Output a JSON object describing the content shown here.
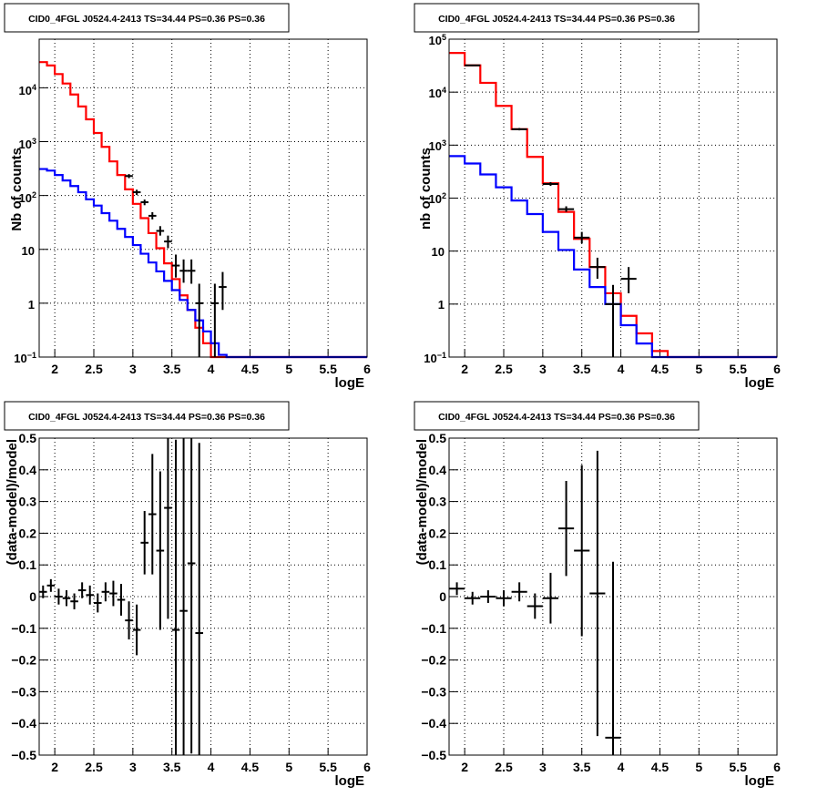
{
  "chart_data": [
    {
      "type": "line",
      "title": "CID0_4FGL J0524.4-2413 TS=34.44 PS=0.36 PS=0.36",
      "xlabel": "logE",
      "ylabel": "Nb of counts",
      "xlim": [
        1.8,
        6.0
      ],
      "ylim": [
        0.1,
        80000
      ],
      "yscale": "log",
      "grid": true,
      "x_ticks": [
        "2",
        "2.5",
        "3",
        "3.5",
        "4",
        "4.5",
        "5",
        "5.5",
        "6"
      ],
      "y_ticks": [
        "10^-1",
        "1",
        "10",
        "10^2",
        "10^3",
        "10^4"
      ],
      "series": [
        {
          "color": "#ff0000",
          "style": "step",
          "x": [
            1.8,
            1.9,
            2.0,
            2.1,
            2.2,
            2.3,
            2.4,
            2.5,
            2.6,
            2.7,
            2.8,
            2.9,
            3.0,
            3.1,
            3.2,
            3.3,
            3.4,
            3.5,
            3.6,
            3.7,
            3.8,
            3.9,
            4.0,
            4.1,
            4.2,
            4.3,
            4.4,
            4.5,
            4.6,
            4.7,
            4.8,
            4.9,
            5.0,
            5.1,
            5.2,
            5.3,
            5.4,
            5.5,
            5.6,
            5.7,
            5.8,
            5.9
          ],
          "y": [
            30000,
            26000,
            18000,
            12000,
            7500,
            4500,
            2600,
            1450,
            800,
            430,
            240,
            130,
            70,
            38,
            20,
            10.5,
            5.5,
            2.8,
            1.4,
            0.75,
            0.35,
            0.18,
            0.1,
            0.1,
            0.1,
            0.1,
            0.1,
            0.1,
            0.1,
            0.1,
            0.1,
            0.1,
            0.1,
            0.1,
            0.1,
            0.1,
            0.1,
            0.1,
            0.1,
            0.1,
            0.1,
            0.1
          ]
        },
        {
          "color": "#0000ff",
          "style": "step",
          "x": [
            1.8,
            1.9,
            2.0,
            2.1,
            2.2,
            2.3,
            2.4,
            2.5,
            2.6,
            2.7,
            2.8,
            2.9,
            3.0,
            3.1,
            3.2,
            3.3,
            3.4,
            3.5,
            3.6,
            3.7,
            3.8,
            3.9,
            4.0,
            4.1,
            4.2,
            4.3,
            4.4,
            4.5,
            4.6,
            4.7,
            4.8,
            4.9,
            5.0,
            5.1,
            5.2,
            5.3,
            5.4,
            5.5,
            5.6,
            5.7,
            5.8,
            5.9
          ],
          "y": [
            310,
            290,
            240,
            190,
            150,
            115,
            85,
            65,
            47,
            34,
            24,
            17,
            12,
            8.3,
            5.7,
            3.9,
            2.6,
            1.75,
            1.15,
            0.75,
            0.48,
            0.3,
            0.18,
            0.11,
            0.1,
            0.1,
            0.1,
            0.1,
            0.1,
            0.1,
            0.1,
            0.1,
            0.1,
            0.1,
            0.1,
            0.1,
            0.1,
            0.1,
            0.1,
            0.1,
            0.1,
            0.1
          ]
        }
      ],
      "points": [
        {
          "x": 2.95,
          "y": 230,
          "xerr": 0.05,
          "ylo": 210,
          "yhi": 250
        },
        {
          "x": 3.05,
          "y": 115,
          "xerr": 0.05,
          "ylo": 102,
          "yhi": 128
        },
        {
          "x": 3.15,
          "y": 75,
          "xerr": 0.05,
          "ylo": 66,
          "yhi": 84
        },
        {
          "x": 3.25,
          "y": 42,
          "xerr": 0.05,
          "ylo": 36,
          "yhi": 49
        },
        {
          "x": 3.35,
          "y": 22,
          "xerr": 0.05,
          "ylo": 18,
          "yhi": 27
        },
        {
          "x": 3.45,
          "y": 14,
          "xerr": 0.05,
          "ylo": 10.5,
          "yhi": 18
        },
        {
          "x": 3.55,
          "y": 5,
          "xerr": 0.05,
          "ylo": 3,
          "yhi": 8
        },
        {
          "x": 3.65,
          "y": 4,
          "xerr": 0.05,
          "ylo": 2.4,
          "yhi": 6.5
        },
        {
          "x": 3.75,
          "y": 4,
          "xerr": 0.05,
          "ylo": 2.3,
          "yhi": 6.5
        },
        {
          "x": 3.85,
          "y": 1,
          "xerr": 0.05,
          "ylo": 0.1,
          "yhi": 2.3
        },
        {
          "x": 4.05,
          "y": 1,
          "xerr": 0.05,
          "ylo": 0.1,
          "yhi": 2.3
        },
        {
          "x": 4.15,
          "y": 2,
          "xerr": 0.05,
          "ylo": 0.75,
          "yhi": 3.8
        }
      ]
    },
    {
      "type": "line",
      "title": "CID0_4FGL J0524.4-2413 TS=34.44 PS=0.36 PS=0.36",
      "xlabel": "logE",
      "ylabel": "nb of counts",
      "xlim": [
        1.8,
        6.0
      ],
      "ylim": [
        0.1,
        100000
      ],
      "yscale": "log",
      "grid": true,
      "x_ticks": [
        "2",
        "2.5",
        "3",
        "3.5",
        "4",
        "4.5",
        "5",
        "5.5",
        "6"
      ],
      "y_ticks": [
        "10^-1",
        "1",
        "10",
        "10^2",
        "10^3",
        "10^4",
        "10^5"
      ],
      "series": [
        {
          "color": "#ff0000",
          "style": "step",
          "x": [
            1.8,
            2.0,
            2.2,
            2.4,
            2.6,
            2.8,
            3.0,
            3.2,
            3.4,
            3.6,
            3.8,
            4.0,
            4.2,
            4.4,
            4.6,
            4.8,
            5.0,
            5.2,
            5.4,
            5.6,
            5.8
          ],
          "y": [
            55000,
            32000,
            15000,
            5500,
            2000,
            600,
            190,
            55,
            17,
            5,
            1.6,
            0.6,
            0.28,
            0.13,
            0.1,
            0.1,
            0.1,
            0.1,
            0.1,
            0.1,
            0.1
          ]
        },
        {
          "color": "#0000ff",
          "style": "step",
          "x": [
            1.8,
            2.0,
            2.2,
            2.4,
            2.6,
            2.8,
            3.0,
            3.2,
            3.4,
            3.6,
            3.8,
            4.0,
            4.2,
            4.4,
            4.6,
            4.8,
            5.0,
            5.2,
            5.4,
            5.6,
            5.8
          ],
          "y": [
            620,
            450,
            280,
            160,
            90,
            50,
            23,
            10.5,
            4.5,
            2.1,
            1.0,
            0.4,
            0.18,
            0.1,
            0.1,
            0.1,
            0.1,
            0.1,
            0.1,
            0.1,
            0.1
          ]
        }
      ],
      "points": [
        {
          "x": 2.1,
          "y": 32000,
          "xerr": 0.1,
          "ylo": 31000,
          "yhi": 33000
        },
        {
          "x": 2.7,
          "y": 2000,
          "xerr": 0.1,
          "ylo": 1900,
          "yhi": 2100
        },
        {
          "x": 3.1,
          "y": 185,
          "xerr": 0.1,
          "ylo": 170,
          "yhi": 200
        },
        {
          "x": 3.3,
          "y": 62,
          "xerr": 0.1,
          "ylo": 55,
          "yhi": 70
        },
        {
          "x": 3.5,
          "y": 18,
          "xerr": 0.1,
          "ylo": 14,
          "yhi": 23
        },
        {
          "x": 3.7,
          "y": 5,
          "xerr": 0.1,
          "ylo": 3,
          "yhi": 7.5
        },
        {
          "x": 3.9,
          "y": 1,
          "xerr": 0.1,
          "ylo": 0.1,
          "yhi": 2.3
        },
        {
          "x": 4.1,
          "y": 3,
          "xerr": 0.1,
          "ylo": 1.6,
          "yhi": 5
        }
      ]
    },
    {
      "type": "scatter",
      "title": "CID0_4FGL J0524.4-2413 TS=34.44 PS=0.36 PS=0.36",
      "xlabel": "logE",
      "ylabel": "(data-model)/model",
      "xlim": [
        1.8,
        6.0
      ],
      "ylim": [
        -0.5,
        0.5
      ],
      "grid": true,
      "x_ticks": [
        "2",
        "2.5",
        "3",
        "3.5",
        "4",
        "4.5",
        "5",
        "5.5",
        "6"
      ],
      "y_ticks": [
        "-0.5",
        "-0.4",
        "-0.3",
        "-0.2",
        "-0.1",
        "0",
        "0.1",
        "0.2",
        "0.3",
        "0.4",
        "0.5"
      ],
      "points": [
        {
          "x": 1.85,
          "y": 0.015,
          "xerr": 0.05,
          "err": 0.02
        },
        {
          "x": 1.95,
          "y": 0.035,
          "xerr": 0.05,
          "err": 0.02
        },
        {
          "x": 2.05,
          "y": 0.0,
          "xerr": 0.05,
          "err": 0.025
        },
        {
          "x": 2.15,
          "y": -0.005,
          "xerr": 0.05,
          "err": 0.025
        },
        {
          "x": 2.25,
          "y": -0.015,
          "xerr": 0.05,
          "err": 0.025
        },
        {
          "x": 2.35,
          "y": 0.02,
          "xerr": 0.05,
          "err": 0.025
        },
        {
          "x": 2.45,
          "y": 0.005,
          "xerr": 0.05,
          "err": 0.03
        },
        {
          "x": 2.55,
          "y": -0.02,
          "xerr": 0.05,
          "err": 0.03
        },
        {
          "x": 2.65,
          "y": 0.015,
          "xerr": 0.05,
          "err": 0.03
        },
        {
          "x": 2.75,
          "y": 0.01,
          "xerr": 0.05,
          "err": 0.04
        },
        {
          "x": 2.85,
          "y": -0.01,
          "xerr": 0.05,
          "err": 0.05
        },
        {
          "x": 2.95,
          "y": -0.075,
          "xerr": 0.05,
          "err": 0.06
        },
        {
          "x": 3.05,
          "y": -0.105,
          "xerr": 0.05,
          "err": 0.08
        },
        {
          "x": 3.15,
          "y": 0.17,
          "xerr": 0.05,
          "err": 0.1
        },
        {
          "x": 3.25,
          "y": 0.26,
          "xerr": 0.05,
          "err": 0.19
        },
        {
          "x": 3.35,
          "y": 0.145,
          "xerr": 0.05,
          "err": 0.25
        },
        {
          "x": 3.45,
          "y": 0.28,
          "xerr": 0.05,
          "err": 0.35
        },
        {
          "x": 3.55,
          "y": -0.105,
          "xerr": 0.05,
          "err": 0.6
        },
        {
          "x": 3.65,
          "y": -0.045,
          "xerr": 0.05,
          "err": 0.6
        },
        {
          "x": 3.75,
          "y": 0.105,
          "xerr": 0.05,
          "err": 0.6
        },
        {
          "x": 3.85,
          "y": -0.115,
          "xerr": 0.05,
          "err": 0.6
        }
      ]
    },
    {
      "type": "scatter",
      "title": "CID0_4FGL J0524.4-2413 TS=34.44 PS=0.36 PS=0.36",
      "xlabel": "logE",
      "ylabel": "(data-model)/model",
      "xlim": [
        1.8,
        6.0
      ],
      "ylim": [
        -0.5,
        0.5
      ],
      "grid": true,
      "x_ticks": [
        "2",
        "2.5",
        "3",
        "3.5",
        "4",
        "4.5",
        "5",
        "5.5",
        "6"
      ],
      "y_ticks": [
        "-0.5",
        "-0.4",
        "-0.3",
        "-0.2",
        "-0.1",
        "0",
        "0.1",
        "0.2",
        "0.3",
        "0.4",
        "0.5"
      ],
      "points": [
        {
          "x": 1.9,
          "y": 0.025,
          "xerr": 0.1,
          "err": 0.02
        },
        {
          "x": 2.1,
          "y": -0.005,
          "xerr": 0.1,
          "err": 0.02
        },
        {
          "x": 2.3,
          "y": 0.0,
          "xerr": 0.1,
          "err": 0.02
        },
        {
          "x": 2.5,
          "y": -0.005,
          "xerr": 0.1,
          "err": 0.025
        },
        {
          "x": 2.7,
          "y": 0.015,
          "xerr": 0.1,
          "err": 0.03
        },
        {
          "x": 2.9,
          "y": -0.03,
          "xerr": 0.1,
          "err": 0.04
        },
        {
          "x": 3.1,
          "y": -0.005,
          "xerr": 0.1,
          "err": 0.08
        },
        {
          "x": 3.3,
          "y": 0.215,
          "xerr": 0.1,
          "err": 0.15
        },
        {
          "x": 3.5,
          "y": 0.145,
          "xerr": 0.1,
          "err": 0.27
        },
        {
          "x": 3.7,
          "y": 0.01,
          "xerr": 0.1,
          "err": 0.45
        },
        {
          "x": 3.9,
          "y": -0.445,
          "xerr": 0.1,
          "err": 0.555
        }
      ]
    }
  ]
}
